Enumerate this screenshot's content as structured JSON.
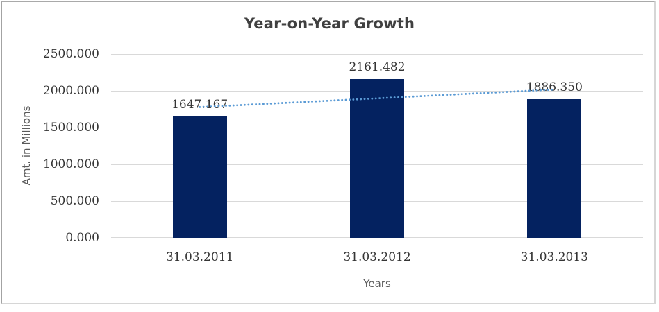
{
  "chart_data": {
    "type": "bar",
    "title": "Year-on-Year Growth",
    "xlabel": "Years",
    "ylabel": "Amt. in Millions",
    "categories": [
      "31.03.2011",
      "31.03.2012",
      "31.03.2013"
    ],
    "values": [
      1647.167,
      2161.482,
      1886.35
    ],
    "data_labels": [
      "1647.167",
      "2161.482",
      "1886.350"
    ],
    "ylim": [
      0,
      2500
    ],
    "ytick_step": 500,
    "ytick_labels": [
      "0.000",
      "500.000",
      "1000.000",
      "1500.000",
      "2000.000",
      "2500.000"
    ],
    "grid": "horizontal-only",
    "legend": "none",
    "trendline": {
      "type": "linear",
      "style": "dotted"
    },
    "colors": {
      "bar": "#042260",
      "trendline": "#5B9BD5",
      "gridline": "#d9d9d9",
      "title_text": "#404040",
      "axis_title_text": "#595959",
      "tick_text": "#353535"
    }
  }
}
